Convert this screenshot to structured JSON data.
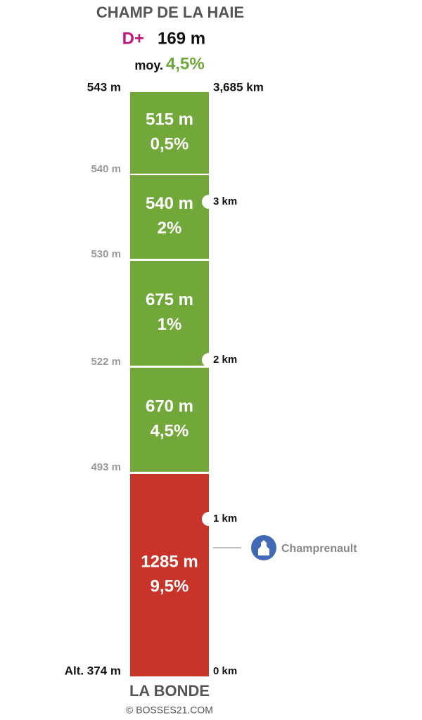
{
  "header": {
    "title": "CHAMP DE LA HAIE",
    "gain_prefix": "D+",
    "gain": "169 m",
    "average_prefix": "moy.",
    "average": "4,5%"
  },
  "altitudes": [
    "543 m",
    "540 m",
    "530 m",
    "522 m",
    "493 m",
    "Alt. 374 m"
  ],
  "distances": [
    "3,685 km",
    "3 km",
    "2 km",
    "1 km",
    "0 km"
  ],
  "segments": [
    {
      "length": "515 m",
      "grade": "0,5%"
    },
    {
      "length": "540 m",
      "grade": "2%"
    },
    {
      "length": "675 m",
      "grade": "1%"
    },
    {
      "length": "670 m",
      "grade": "4,5%"
    },
    {
      "length": "1285 m",
      "grade": "9,5%"
    }
  ],
  "landmarks": [
    {
      "label": "Champrenault"
    }
  ],
  "footer": {
    "start": "LA BONDE",
    "credit": "© BOSSES21.COM"
  }
}
